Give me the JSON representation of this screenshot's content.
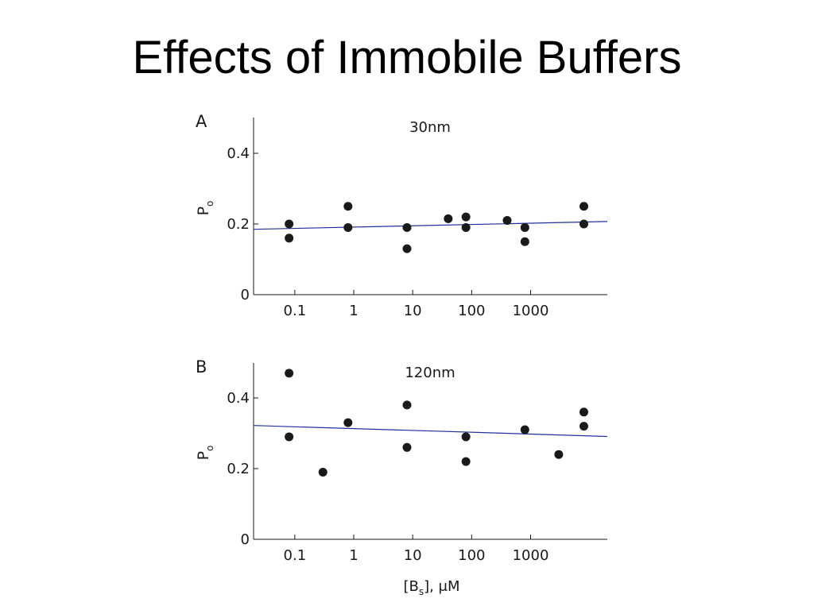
{
  "slide": {
    "title": "Effects of Immobile Buffers"
  },
  "xlabel": {
    "main": "[B",
    "sub": "s",
    "rest": "], μM"
  },
  "ylabel": {
    "main": "P",
    "sub": "o"
  },
  "colors": {
    "points": "#1a1a1a",
    "fit_line": "#1f2f9e",
    "axis": "#1a1a1a"
  },
  "chart_data": [
    {
      "type": "scatter",
      "panel_label": "A",
      "title": "30nm",
      "xscale": "log",
      "xlim": [
        0.02,
        20000
      ],
      "ylim": [
        0,
        0.5
      ],
      "xticks": [
        0.1,
        1,
        10,
        100,
        1000
      ],
      "xtick_labels": [
        "0.1",
        "1",
        "10",
        "100",
        "1000"
      ],
      "yticks": [
        0,
        0.2,
        0.4
      ],
      "ytick_labels": [
        "0",
        "0.2",
        "0.4"
      ],
      "points": [
        {
          "x": 0.08,
          "y": 0.2
        },
        {
          "x": 0.08,
          "y": 0.16
        },
        {
          "x": 0.8,
          "y": 0.25
        },
        {
          "x": 0.8,
          "y": 0.19
        },
        {
          "x": 8,
          "y": 0.19
        },
        {
          "x": 8,
          "y": 0.13
        },
        {
          "x": 40,
          "y": 0.215
        },
        {
          "x": 80,
          "y": 0.22
        },
        {
          "x": 80,
          "y": 0.19
        },
        {
          "x": 400,
          "y": 0.21
        },
        {
          "x": 800,
          "y": 0.19
        },
        {
          "x": 800,
          "y": 0.15
        },
        {
          "x": 8000,
          "y": 0.25
        },
        {
          "x": 8000,
          "y": 0.2
        }
      ],
      "fit_line": {
        "x": [
          0.02,
          20000
        ],
        "y": [
          0.185,
          0.207
        ]
      }
    },
    {
      "type": "scatter",
      "panel_label": "B",
      "title": "120nm",
      "xscale": "log",
      "xlim": [
        0.02,
        20000
      ],
      "ylim": [
        0,
        0.5
      ],
      "xticks": [
        0.1,
        1,
        10,
        100,
        1000
      ],
      "xtick_labels": [
        "0.1",
        "1",
        "10",
        "100",
        "1000"
      ],
      "yticks": [
        0,
        0.2,
        0.4
      ],
      "ytick_labels": [
        "0",
        "0.2",
        "0.4"
      ],
      "points": [
        {
          "x": 0.08,
          "y": 0.47
        },
        {
          "x": 0.08,
          "y": 0.29
        },
        {
          "x": 0.3,
          "y": 0.19
        },
        {
          "x": 0.8,
          "y": 0.33
        },
        {
          "x": 8,
          "y": 0.38
        },
        {
          "x": 8,
          "y": 0.26
        },
        {
          "x": 80,
          "y": 0.29
        },
        {
          "x": 80,
          "y": 0.22
        },
        {
          "x": 800,
          "y": 0.31
        },
        {
          "x": 3000,
          "y": 0.24
        },
        {
          "x": 8000,
          "y": 0.36
        },
        {
          "x": 8000,
          "y": 0.32
        }
      ],
      "fit_line": {
        "x": [
          0.02,
          20000
        ],
        "y": [
          0.322,
          0.291
        ]
      }
    }
  ]
}
